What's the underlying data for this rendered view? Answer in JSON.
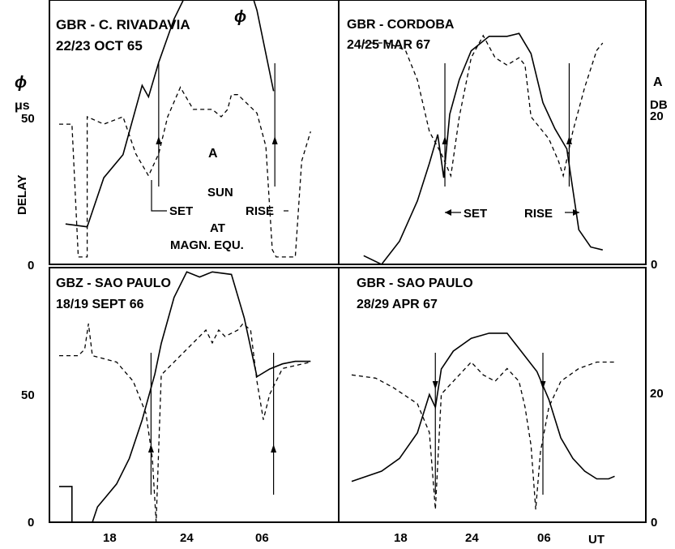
{
  "chart_data": {
    "type": "line",
    "axes": {
      "x_ticks": [
        "18",
        "24",
        "06"
      ],
      "x_unit": "UT",
      "left_ticks": [
        "0",
        "50"
      ],
      "right_ticks": [
        "0",
        "20"
      ],
      "left_label_top": "ϕ",
      "left_unit": "μs",
      "left_label": "DELAY",
      "right_label_top": "A",
      "right_unit": "DB"
    },
    "panels": [
      {
        "id": "rivadavia",
        "title_line1": "GBR - C. RIVADAVIA",
        "title_line2": "22/23 OCT 65",
        "curve_labels": {
          "phi": "ϕ",
          "amp": "A"
        },
        "annotation": {
          "sun": "SUN",
          "set": "SET",
          "rise": "RISE",
          "at": "AT",
          "equ": "MAGN. EQU."
        },
        "phi": [
          [
            14.5,
            14
          ],
          [
            16.2,
            13
          ],
          [
            17.5,
            30
          ],
          [
            19,
            38
          ],
          [
            20.5,
            62
          ],
          [
            21,
            58
          ],
          [
            21.8,
            70
          ],
          [
            23,
            85
          ],
          [
            24,
            94
          ],
          [
            25,
            96
          ],
          [
            26.5,
            108
          ],
          [
            27.2,
            110
          ],
          [
            28,
            108
          ],
          [
            28.5,
            102
          ],
          [
            29.5,
            88
          ],
          [
            30.8,
            60
          ]
        ],
        "amp": [
          [
            14,
            19
          ],
          [
            15,
            19
          ],
          [
            15.5,
            1
          ],
          [
            16.2,
            1
          ],
          [
            16.2,
            20
          ],
          [
            17.5,
            19
          ],
          [
            19,
            20
          ],
          [
            20,
            15
          ],
          [
            21,
            12
          ],
          [
            21.8,
            15
          ],
          [
            22.5,
            20
          ],
          [
            23.5,
            24
          ],
          [
            24.5,
            21
          ],
          [
            26,
            21
          ],
          [
            26.7,
            20
          ],
          [
            27.2,
            21
          ],
          [
            27.5,
            23
          ],
          [
            28,
            23
          ],
          [
            29.5,
            20.5
          ],
          [
            30.2,
            16
          ],
          [
            30.7,
            2
          ],
          [
            31,
            1
          ],
          [
            32.5,
            1
          ],
          [
            33,
            14
          ],
          [
            33.7,
            18
          ]
        ],
        "arrows_x": [
          21.8,
          30.9
        ]
      },
      {
        "id": "cordoba",
        "title_line1": "GBR - CORDOBA",
        "title_line2": "24/25 MAR 67",
        "annotation": {
          "set": "SET",
          "rise": "RISE"
        },
        "phi": [
          [
            15,
            3
          ],
          [
            16.5,
            0
          ],
          [
            18,
            8
          ],
          [
            19.5,
            22
          ],
          [
            20.5,
            35
          ],
          [
            21.2,
            45
          ],
          [
            21.7,
            30
          ],
          [
            22.2,
            52
          ],
          [
            23,
            64
          ],
          [
            24,
            74
          ],
          [
            25.5,
            79
          ],
          [
            27,
            79
          ],
          [
            28,
            80
          ],
          [
            29,
            73
          ],
          [
            30,
            56
          ],
          [
            31,
            47
          ],
          [
            32,
            40
          ],
          [
            33,
            12
          ],
          [
            34,
            6
          ],
          [
            35,
            5
          ]
        ],
        "amp": [
          [
            15,
            30
          ],
          [
            17,
            30
          ],
          [
            18.5,
            29
          ],
          [
            19.5,
            25
          ],
          [
            20.5,
            18
          ],
          [
            21.5,
            15
          ],
          [
            22.3,
            12
          ],
          [
            23,
            20
          ],
          [
            24,
            28
          ],
          [
            25,
            31
          ],
          [
            26,
            28
          ],
          [
            27,
            27
          ],
          [
            28,
            28
          ],
          [
            28.5,
            27
          ],
          [
            29,
            20
          ],
          [
            30.5,
            17
          ],
          [
            31.3,
            14
          ],
          [
            31.7,
            12
          ],
          [
            32.5,
            18
          ],
          [
            33.5,
            24
          ],
          [
            34.5,
            29
          ],
          [
            35,
            30
          ]
        ],
        "arrows_x": [
          21.8,
          32.2
        ]
      },
      {
        "id": "saopaulo66",
        "title_line1": "GBZ - SAO PAULO",
        "title_line2": "18/19 SEPT 66",
        "phi": [
          [
            14,
            14
          ],
          [
            15,
            14
          ],
          [
            15,
            0
          ],
          [
            16.6,
            0
          ],
          [
            17,
            6
          ],
          [
            18.5,
            15
          ],
          [
            19.5,
            25
          ],
          [
            20.5,
            40
          ],
          [
            21.5,
            58
          ],
          [
            22,
            70
          ],
          [
            23,
            88
          ],
          [
            24,
            98
          ],
          [
            25,
            96
          ],
          [
            26,
            98
          ],
          [
            27.5,
            97
          ],
          [
            28.5,
            80
          ],
          [
            29.5,
            57
          ],
          [
            30.5,
            60
          ],
          [
            31.5,
            62
          ],
          [
            32.5,
            63
          ],
          [
            33.7,
            63
          ]
        ],
        "amp": [
          [
            14,
            26
          ],
          [
            15.5,
            26
          ],
          [
            16,
            27
          ],
          [
            16.3,
            31
          ],
          [
            16.6,
            26
          ],
          [
            18.5,
            25
          ],
          [
            19.8,
            22
          ],
          [
            20.8,
            17
          ],
          [
            21.3,
            10
          ],
          [
            21.6,
            0
          ],
          [
            22,
            23
          ],
          [
            23.5,
            26
          ],
          [
            24.5,
            28
          ],
          [
            25.5,
            30
          ],
          [
            26,
            28
          ],
          [
            26.5,
            30
          ],
          [
            27,
            29
          ],
          [
            28,
            30
          ],
          [
            28.4,
            31
          ],
          [
            29,
            30
          ],
          [
            29.5,
            22
          ],
          [
            30,
            16
          ],
          [
            30.5,
            20
          ],
          [
            31.5,
            24
          ],
          [
            33.7,
            25
          ]
        ],
        "arrows_x": [
          21.2,
          30.8
        ]
      },
      {
        "id": "saopaulo67",
        "title_line1": "GBR - SAO PAULO",
        "title_line2": "28/29 APR 67",
        "phi": [
          [
            14,
            16
          ],
          [
            16.5,
            20
          ],
          [
            18,
            25
          ],
          [
            19.5,
            35
          ],
          [
            20.5,
            50
          ],
          [
            21,
            45
          ],
          [
            21.5,
            60
          ],
          [
            22.5,
            67
          ],
          [
            24,
            72
          ],
          [
            25.5,
            74
          ],
          [
            27,
            74
          ],
          [
            28,
            68
          ],
          [
            29.5,
            59
          ],
          [
            30.5,
            48
          ],
          [
            31.5,
            33
          ],
          [
            32.5,
            25
          ],
          [
            33.5,
            20
          ],
          [
            34.5,
            17
          ],
          [
            35.5,
            17
          ],
          [
            36,
            18
          ]
        ],
        "amp": [
          [
            14,
            23
          ],
          [
            16,
            22.5
          ],
          [
            17.5,
            21
          ],
          [
            19.5,
            18.5
          ],
          [
            20.5,
            14
          ],
          [
            21,
            2
          ],
          [
            21.5,
            20
          ],
          [
            23,
            23
          ],
          [
            24,
            25
          ],
          [
            25,
            23
          ],
          [
            26,
            22
          ],
          [
            27,
            24
          ],
          [
            28,
            22
          ],
          [
            28.5,
            18
          ],
          [
            29,
            12
          ],
          [
            29.4,
            2
          ],
          [
            29.8,
            11
          ],
          [
            30.5,
            18
          ],
          [
            31.5,
            22
          ],
          [
            33,
            24
          ],
          [
            34.5,
            25
          ],
          [
            36,
            25
          ]
        ],
        "arrows_x": [
          21.0,
          30.0
        ]
      }
    ]
  }
}
